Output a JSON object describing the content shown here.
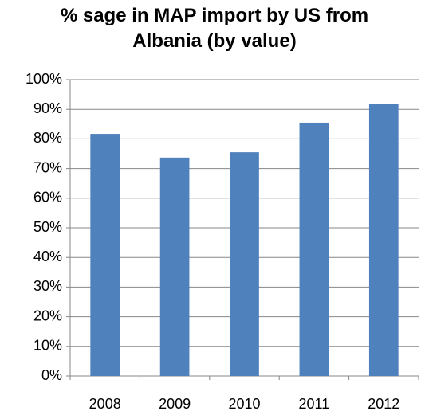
{
  "chart_data": {
    "type": "bar",
    "title": "% sage in MAP import by US from Albania (by value)",
    "categories": [
      "2008",
      "2009",
      "2010",
      "2011",
      "2012"
    ],
    "values": [
      81.7,
      73.7,
      75.5,
      85.5,
      91.9
    ],
    "color": "#4f81bd",
    "ylim": [
      0,
      100
    ],
    "yticks": [
      {
        "value": 0,
        "label": "0%"
      },
      {
        "value": 10,
        "label": "10%"
      },
      {
        "value": 20,
        "label": "20%"
      },
      {
        "value": 30,
        "label": "30%"
      },
      {
        "value": 40,
        "label": "40%"
      },
      {
        "value": 50,
        "label": "50%"
      },
      {
        "value": 60,
        "label": "60%"
      },
      {
        "value": 70,
        "label": "70%"
      },
      {
        "value": 80,
        "label": "80%"
      },
      {
        "value": 90,
        "label": "90%"
      },
      {
        "value": 100,
        "label": "100%"
      }
    ],
    "grid": true
  }
}
